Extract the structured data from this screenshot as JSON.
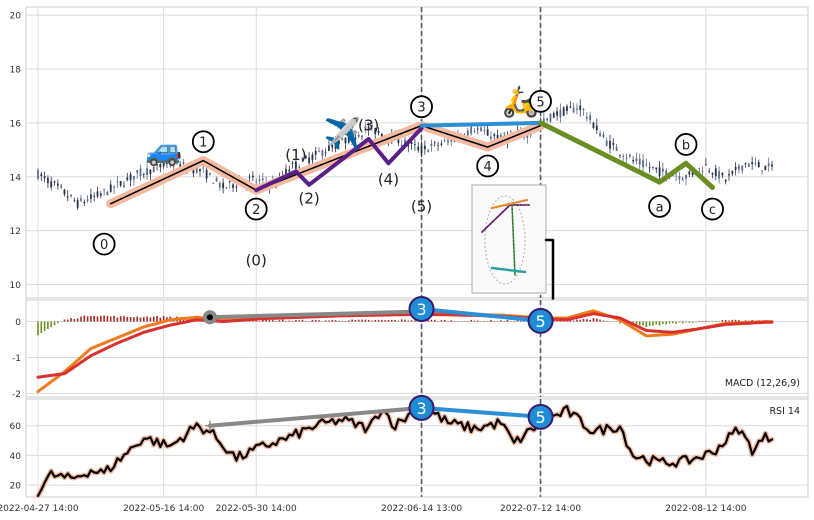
{
  "chart_data": [
    {
      "type": "candlestick",
      "panel": "price",
      "ylim": [
        9.5,
        20.3
      ],
      "yticks": [
        "10",
        "12",
        "14",
        "16",
        "18",
        "20"
      ],
      "grid": true,
      "x_range_days": [
        0,
        111
      ],
      "close_keypoints": [
        [
          0,
          14.1
        ],
        [
          3,
          13.6
        ],
        [
          6,
          13.0
        ],
        [
          10,
          13.4
        ],
        [
          15,
          14.1
        ],
        [
          20,
          14.5
        ],
        [
          25,
          14.2
        ],
        [
          28,
          13.6
        ],
        [
          32,
          13.9
        ],
        [
          36,
          13.7
        ],
        [
          38,
          14.3
        ],
        [
          42,
          14.8
        ],
        [
          46,
          15.3
        ],
        [
          50,
          15.8
        ],
        [
          54,
          15.4
        ],
        [
          58,
          15.0
        ],
        [
          62,
          15.3
        ],
        [
          66,
          15.8
        ],
        [
          70,
          15.4
        ],
        [
          74,
          15.6
        ],
        [
          78,
          16.3
        ],
        [
          82,
          16.6
        ],
        [
          86,
          15.3
        ],
        [
          90,
          14.6
        ],
        [
          94,
          14.2
        ],
        [
          98,
          14.0
        ],
        [
          101,
          14.4
        ],
        [
          104,
          13.9
        ],
        [
          107,
          14.5
        ],
        [
          111,
          14.3
        ]
      ],
      "wave_labels": [
        {
          "text": "0",
          "day": 10,
          "y": 11.5,
          "circled": true
        },
        {
          "text": "1",
          "day": 25,
          "y": 15.3,
          "circled": true
        },
        {
          "text": "2",
          "day": 33,
          "y": 12.8,
          "circled": true
        },
        {
          "text": "3",
          "day": 58,
          "y": 16.6,
          "circled": true
        },
        {
          "text": "4",
          "day": 68,
          "y": 14.4,
          "circled": true
        },
        {
          "text": "5",
          "day": 76,
          "y": 16.8,
          "circled": true
        },
        {
          "text": "a",
          "day": 94,
          "y": 12.9,
          "circled": true
        },
        {
          "text": "b",
          "day": 98,
          "y": 15.2,
          "circled": true
        },
        {
          "text": "c",
          "day": 102,
          "y": 12.8,
          "circled": true
        },
        {
          "text": "(0)",
          "day": 33,
          "y": 10.9,
          "circled": false
        },
        {
          "text": "(1)",
          "day": 39,
          "y": 14.8,
          "circled": false
        },
        {
          "text": "(2)",
          "day": 41,
          "y": 13.2,
          "circled": false
        },
        {
          "text": "(3)",
          "day": 50,
          "y": 15.9,
          "circled": false
        },
        {
          "text": "(4)",
          "day": 53,
          "y": 13.9,
          "circled": false
        },
        {
          "text": "(5)",
          "day": 58,
          "y": 12.9,
          "circled": false
        }
      ],
      "emoji": [
        {
          "glyph": "🚙",
          "day": 19,
          "y": 15.0
        },
        {
          "glyph": "✈️",
          "day": 46,
          "y": 15.6
        },
        {
          "glyph": "🛵",
          "day": 73,
          "y": 16.8
        }
      ],
      "wave_lines": [
        {
          "color": "#f4b9a0",
          "width": 9,
          "points": [
            [
              11,
              13.0
            ],
            [
              25,
              14.6
            ],
            [
              33,
              13.5
            ],
            [
              58,
              15.9
            ],
            [
              68,
              15.1
            ],
            [
              76,
              15.9
            ]
          ]
        },
        {
          "color": "#000000",
          "width": 1.5,
          "points": [
            [
              11,
              13.0
            ],
            [
              25,
              14.6
            ],
            [
              33,
              13.5
            ],
            [
              58,
              15.9
            ],
            [
              68,
              15.1
            ],
            [
              76,
              15.9
            ]
          ]
        },
        {
          "color": "#5b1f8a",
          "width": 4,
          "points": [
            [
              33,
              13.5
            ],
            [
              39,
              14.2
            ],
            [
              41,
              13.7
            ],
            [
              50,
              15.4
            ],
            [
              53,
              14.5
            ],
            [
              58,
              15.8
            ]
          ]
        },
        {
          "color": "#2b8fd6",
          "width": 4,
          "points": [
            [
              58,
              15.9
            ],
            [
              76,
              16.0
            ]
          ]
        },
        {
          "color": "#6b8e23",
          "width": 5,
          "points": [
            [
              76,
              16.0
            ],
            [
              94,
              13.8
            ],
            [
              98,
              14.5
            ],
            [
              102,
              13.6
            ]
          ]
        }
      ]
    },
    {
      "type": "line",
      "panel": "macd",
      "label": "MACD (12,26,9)",
      "ylim": [
        -2.1,
        0.6
      ],
      "yticks": [
        "0",
        "-1",
        "-2"
      ],
      "series_keypoints": [
        {
          "color": "#f07a1c",
          "points": [
            [
              0,
              -1.95
            ],
            [
              4,
              -1.4
            ],
            [
              8,
              -0.75
            ],
            [
              12,
              -0.45
            ],
            [
              16,
              -0.15
            ],
            [
              20,
              0.05
            ],
            [
              24,
              0.12
            ],
            [
              28,
              0.05
            ],
            [
              34,
              0.12
            ],
            [
              40,
              0.15
            ],
            [
              46,
              0.2
            ],
            [
              52,
              0.22
            ],
            [
              58,
              0.25
            ],
            [
              64,
              0.2
            ],
            [
              70,
              0.18
            ],
            [
              76,
              0.1
            ],
            [
              80,
              0.1
            ],
            [
              84,
              0.3
            ],
            [
              88,
              0.05
            ],
            [
              92,
              -0.4
            ],
            [
              96,
              -0.35
            ],
            [
              100,
              -0.2
            ],
            [
              104,
              -0.05
            ],
            [
              110,
              0.0
            ]
          ]
        },
        {
          "color": "#d93030",
          "points": [
            [
              0,
              -1.55
            ],
            [
              4,
              -1.45
            ],
            [
              8,
              -0.95
            ],
            [
              12,
              -0.6
            ],
            [
              16,
              -0.3
            ],
            [
              20,
              -0.1
            ],
            [
              24,
              0.05
            ],
            [
              28,
              0.0
            ],
            [
              34,
              0.08
            ],
            [
              40,
              0.12
            ],
            [
              46,
              0.16
            ],
            [
              52,
              0.18
            ],
            [
              58,
              0.2
            ],
            [
              64,
              0.18
            ],
            [
              70,
              0.15
            ],
            [
              76,
              0.08
            ],
            [
              80,
              0.05
            ],
            [
              84,
              0.22
            ],
            [
              88,
              0.1
            ],
            [
              92,
              -0.25
            ],
            [
              96,
              -0.3
            ],
            [
              100,
              -0.2
            ],
            [
              104,
              -0.08
            ],
            [
              110,
              -0.02
            ]
          ]
        }
      ],
      "markers": [
        {
          "text": "3",
          "day": 58,
          "y": 0.35
        },
        {
          "text": "5",
          "day": 76,
          "y": 0.02
        }
      ],
      "trend_lines": [
        {
          "color": "#888888",
          "from": [
            26,
            0.12
          ],
          "to": [
            58,
            0.28
          ]
        },
        {
          "color": "#2b8fd6",
          "from": [
            58,
            0.35
          ],
          "to": [
            76,
            0.02
          ]
        }
      ]
    },
    {
      "type": "line",
      "panel": "rsi",
      "label": "RSI 14",
      "ylim": [
        12,
        78
      ],
      "yticks": [
        "20",
        "40",
        "60"
      ],
      "series_keypoints": [
        {
          "color": "#000000",
          "points": [
            [
              0,
              16
            ],
            [
              2,
              27
            ],
            [
              5,
              24
            ],
            [
              8,
              30
            ],
            [
              10,
              28
            ],
            [
              13,
              40
            ],
            [
              16,
              52
            ],
            [
              20,
              46
            ],
            [
              24,
              60
            ],
            [
              26,
              56
            ],
            [
              30,
              38
            ],
            [
              34,
              46
            ],
            [
              38,
              52
            ],
            [
              42,
              60
            ],
            [
              46,
              64
            ],
            [
              50,
              58
            ],
            [
              52,
              72
            ],
            [
              54,
              60
            ],
            [
              58,
              74
            ],
            [
              62,
              62
            ],
            [
              66,
              58
            ],
            [
              70,
              62
            ],
            [
              72,
              48
            ],
            [
              76,
              62
            ],
            [
              80,
              70
            ],
            [
              84,
              56
            ],
            [
              88,
              60
            ],
            [
              90,
              40
            ],
            [
              94,
              35
            ],
            [
              98,
              36
            ],
            [
              102,
              42
            ],
            [
              104,
              50
            ],
            [
              106,
              58
            ],
            [
              108,
              44
            ],
            [
              110,
              52
            ]
          ]
        }
      ],
      "markers": [
        {
          "text": "3",
          "day": 58,
          "y": 72
        },
        {
          "text": "5",
          "day": 76,
          "y": 66
        }
      ],
      "trend_lines": [
        {
          "color": "#888888",
          "from": [
            26,
            60
          ],
          "to": [
            58,
            72
          ]
        },
        {
          "color": "#2b8fd6",
          "from": [
            58,
            72
          ],
          "to": [
            76,
            66
          ]
        }
      ]
    }
  ],
  "x_tick_labels": [
    "2022-04-27 14:00",
    "2022-05-16 14:00",
    "2022-05-30 14:00",
    "2022-06-14 13:00",
    "2022-07-12 14:00",
    "2022-08-12 14:00"
  ],
  "x_tick_days": [
    0,
    19,
    33,
    58,
    76,
    101
  ],
  "vertical_marker_days": [
    58,
    76
  ],
  "colors": {
    "up": "#5a6b8c",
    "down": "#26324d",
    "grid": "#dcdcdc",
    "axis": "#cccccc",
    "dashed": "#4a5a75"
  }
}
